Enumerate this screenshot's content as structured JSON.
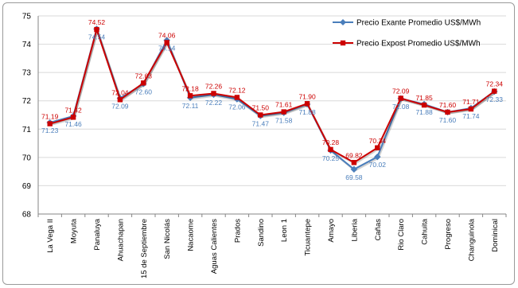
{
  "chart_data": {
    "type": "line",
    "title": "",
    "xlabel": "",
    "ylabel": "",
    "ylim": [
      68,
      75
    ],
    "yticks": [
      "68",
      "69",
      "70",
      "71",
      "72",
      "73",
      "74",
      "75"
    ],
    "grid": "horizontal",
    "legend_position": "top-right",
    "categories": [
      "La Vega II",
      "Moyuta",
      "Panaluya",
      "Ahuachapan",
      "15 de Septiembre",
      "San Nicolás",
      "Nacaome",
      "Aguas Calientes",
      "Prados",
      "Sandino",
      "Leon 1",
      "Ticuantepe",
      "Amayo",
      "Liberia",
      "Cañas",
      "Rio Claro",
      "Cahuita",
      "Progreso",
      "Changuinola",
      "Dominical"
    ],
    "series": [
      {
        "name": "Precio Exante Promedio US$/MWh",
        "color": "#4a7ebb",
        "marker": "diamond",
        "labels_position": "below",
        "values": [
          71.23,
          71.46,
          74.54,
          72.09,
          72.6,
          74.14,
          72.11,
          72.22,
          72.06,
          71.47,
          71.58,
          71.88,
          70.25,
          69.58,
          70.02,
          72.08,
          71.88,
          71.6,
          71.74,
          72.33
        ],
        "value_labels": [
          "71.23",
          "71.46",
          "74.54",
          "72.09",
          "72.60",
          "74.14",
          "72.11",
          "72.22",
          "72.06",
          "71.47",
          "71.58",
          "71.88",
          "70.25",
          "69.58",
          "70.02",
          "72.08",
          "71.88",
          "71.60",
          "71.74",
          "72.33"
        ]
      },
      {
        "name": "Precio Expost Promedio US$/MWh",
        "color": "#cc0000",
        "marker": "square",
        "labels_position": "above",
        "values": [
          71.19,
          71.42,
          74.52,
          72.04,
          72.63,
          74.06,
          72.18,
          72.26,
          72.12,
          71.5,
          71.61,
          71.9,
          70.28,
          69.82,
          70.34,
          72.09,
          71.85,
          71.6,
          71.71,
          72.34
        ],
        "value_labels": [
          "71.19",
          "71.42",
          "74.52",
          "72.04",
          "72.63",
          "74.06",
          "72.18",
          "72.26",
          "72.12",
          "71.50",
          "71.61",
          "71.90",
          "70.28",
          "69.82",
          "70.34",
          "72.09",
          "71.85",
          "71.60",
          "71.71",
          "72.34"
        ]
      }
    ]
  }
}
